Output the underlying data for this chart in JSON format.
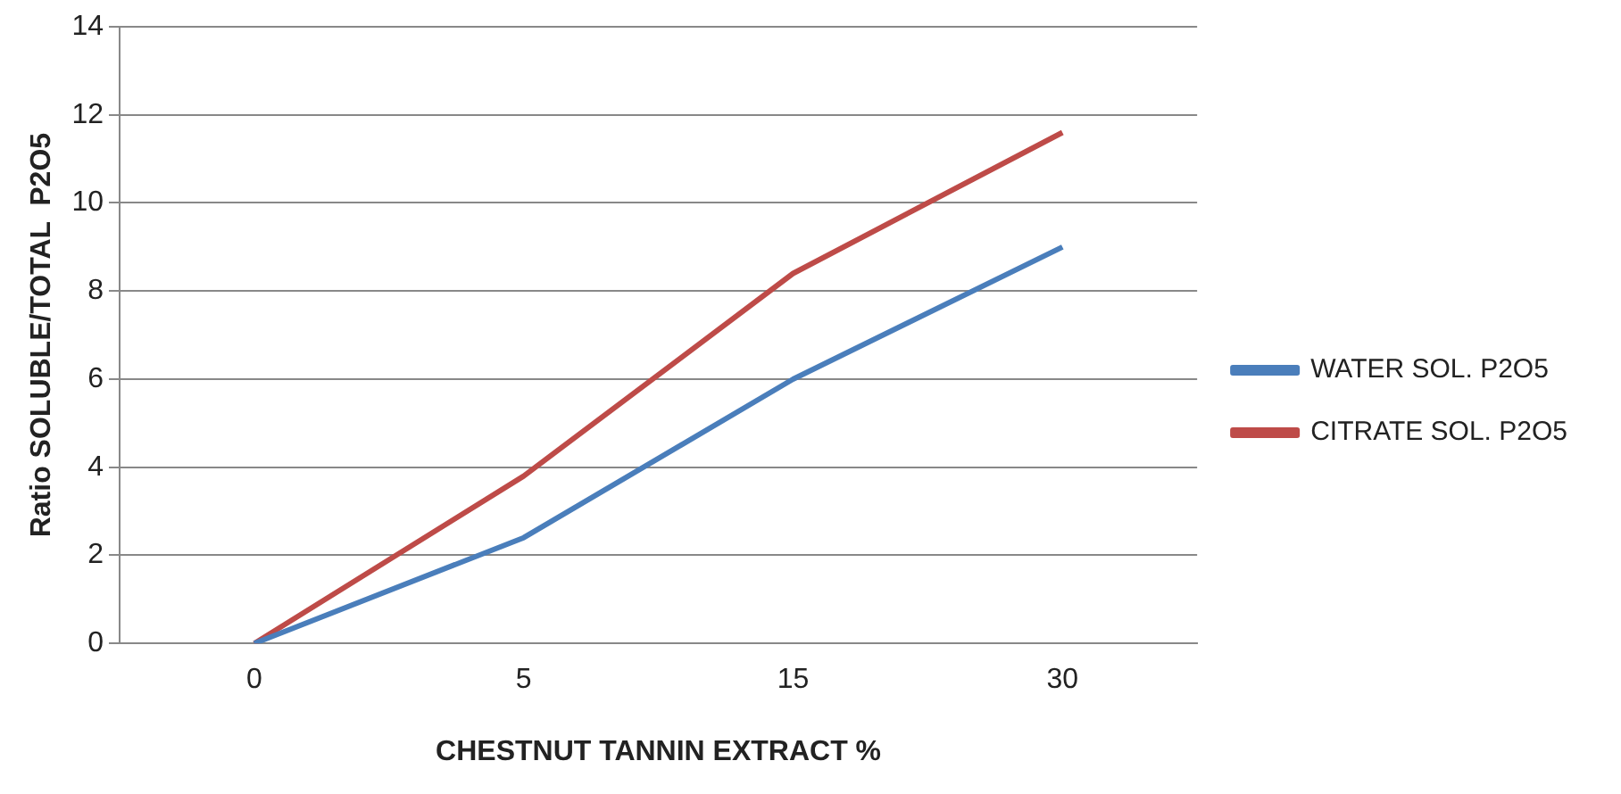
{
  "chart_data": {
    "type": "line",
    "xlabel": "CHESTNUT TANNIN EXTRACT %",
    "ylabel": "Ratio SOLUBLE/TOTAL  P2O5",
    "categories": [
      "0",
      "5",
      "15",
      "30"
    ],
    "series": [
      {
        "name": "WATER SOL. P2O5",
        "color": "#4a7ebb",
        "values": [
          0,
          2.4,
          6.0,
          9.0
        ]
      },
      {
        "name": "CITRATE SOL. P2O5",
        "color": "#be4b48",
        "values": [
          0,
          3.8,
          8.4,
          11.6
        ]
      }
    ],
    "ylim": [
      0,
      14
    ],
    "yticks": [
      0,
      2,
      4,
      6,
      8,
      10,
      12,
      14
    ],
    "grid": "y",
    "legend": "right",
    "marker": "none",
    "line_style": "solid"
  }
}
